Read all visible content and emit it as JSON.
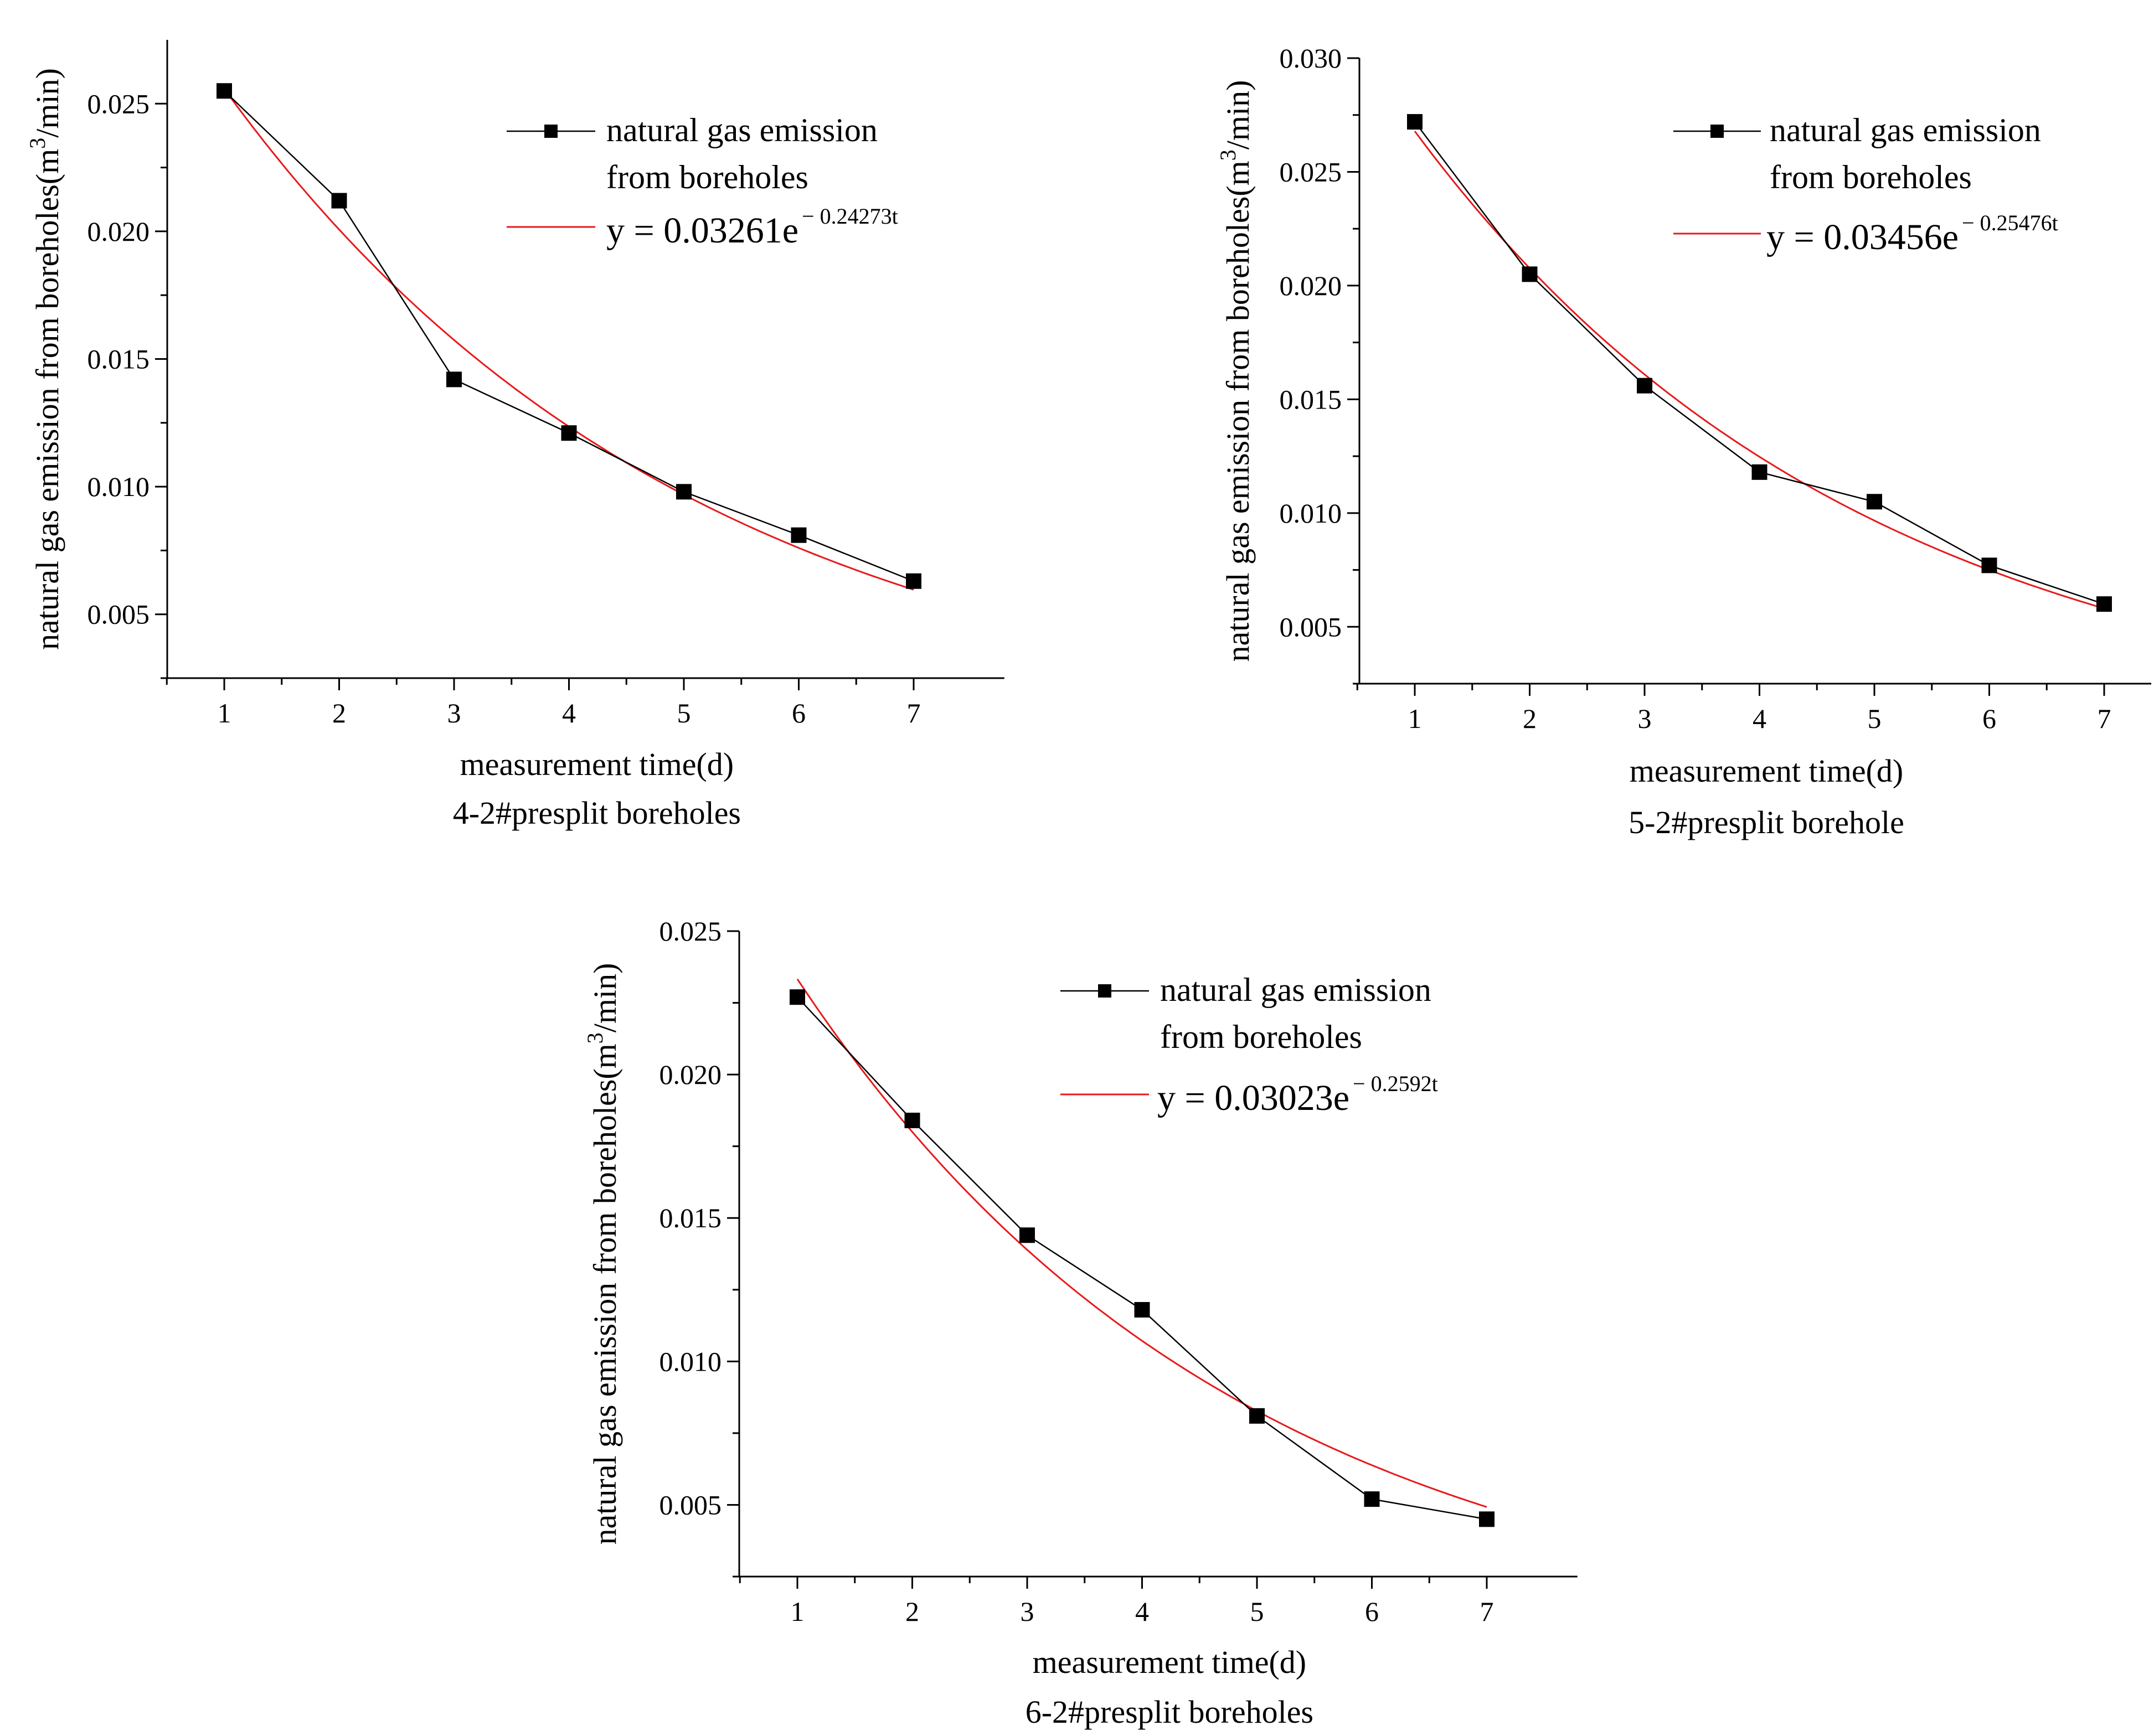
{
  "figure": {
    "charts": [
      {
        "name": "chart-4-2"
      },
      {
        "name": "chart-5-2"
      },
      {
        "name": "chart-6-2"
      }
    ]
  },
  "colors": {
    "measured": "#000000",
    "fit": "#e8191b",
    "axis": "#000000"
  },
  "chart_data": [
    {
      "type": "line",
      "caption": "4-2#presplit boreholes",
      "xlabel": "measurement time(d)",
      "ylabel_prefix": "natural gas emission from boreholes(m",
      "ylabel_sup": "3",
      "ylabel_suffix": "/min)",
      "x": [
        1,
        2,
        3,
        4,
        5,
        6,
        7
      ],
      "xlim": [
        0.5,
        7.5
      ],
      "ylim": [
        0.0025,
        0.0275
      ],
      "x_ticks": [
        1,
        2,
        3,
        4,
        5,
        6,
        7
      ],
      "y_ticks": [
        0.005,
        0.01,
        0.015,
        0.02,
        0.025
      ],
      "y_tick_labels": [
        "0.005",
        "0.010",
        "0.015",
        "0.020",
        "0.025"
      ],
      "legend_position": "top-right",
      "series": [
        {
          "name": "natural gas emission from boreholes",
          "legend_lines": [
            "natural gas emission",
            "from boreholes"
          ],
          "marker": "square",
          "values": [
            0.0255,
            0.0212,
            0.0142,
            0.0121,
            0.0098,
            0.0081,
            0.0063
          ]
        }
      ],
      "fit": {
        "a": 0.03261,
        "b": 0.24273,
        "equation_main": "y = 0.03261e",
        "equation_exp": "− 0.24273t"
      }
    },
    {
      "type": "line",
      "caption": "5-2#presplit borehole",
      "xlabel": "measurement time(d)",
      "ylabel_prefix": "natural gas emission from boreholes(m",
      "ylabel_sup": "3",
      "ylabel_suffix": "/min)",
      "x": [
        1,
        2,
        3,
        4,
        5,
        6,
        7
      ],
      "xlim": [
        0.5,
        7.5
      ],
      "ylim": [
        0.0025,
        0.03
      ],
      "x_ticks": [
        1,
        2,
        3,
        4,
        5,
        6,
        7
      ],
      "y_ticks": [
        0.005,
        0.01,
        0.015,
        0.02,
        0.025,
        0.03
      ],
      "y_tick_labels": [
        "0.005",
        "0.010",
        "0.015",
        "0.020",
        "0.025",
        "0.030"
      ],
      "legend_position": "top-right",
      "series": [
        {
          "name": "natural gas emission from boreholes",
          "legend_lines": [
            "natural gas emission",
            "from boreholes"
          ],
          "marker": "square",
          "values": [
            0.0272,
            0.0205,
            0.0156,
            0.0118,
            0.0105,
            0.0077,
            0.006
          ]
        }
      ],
      "fit": {
        "a": 0.03456,
        "b": 0.25476,
        "equation_main": "y = 0.03456e",
        "equation_exp": "− 0.25476t"
      }
    },
    {
      "type": "line",
      "caption": "6-2#presplit boreholes",
      "xlabel": "measurement time(d)",
      "ylabel_prefix": "natural gas emission from boreholes(m",
      "ylabel_sup": "3",
      "ylabel_suffix": "/min)",
      "x": [
        1,
        2,
        3,
        4,
        5,
        6,
        7
      ],
      "xlim": [
        0.5,
        7.5
      ],
      "ylim": [
        0.0025,
        0.025
      ],
      "x_ticks": [
        1,
        2,
        3,
        4,
        5,
        6,
        7
      ],
      "y_ticks": [
        0.005,
        0.01,
        0.015,
        0.02,
        0.025
      ],
      "y_tick_labels": [
        "0.005",
        "0.010",
        "0.015",
        "0.020",
        "0.025"
      ],
      "legend_position": "top-right",
      "series": [
        {
          "name": "natural gas emission from boreholes",
          "legend_lines": [
            "natural gas emission",
            "from boreholes"
          ],
          "marker": "square",
          "values": [
            0.0227,
            0.0184,
            0.0144,
            0.0118,
            0.0081,
            0.0052,
            0.0045
          ]
        }
      ],
      "fit": {
        "a": 0.03023,
        "b": 0.2592,
        "equation_main": "y = 0.03023e",
        "equation_exp": "− 0.2592t"
      }
    }
  ]
}
